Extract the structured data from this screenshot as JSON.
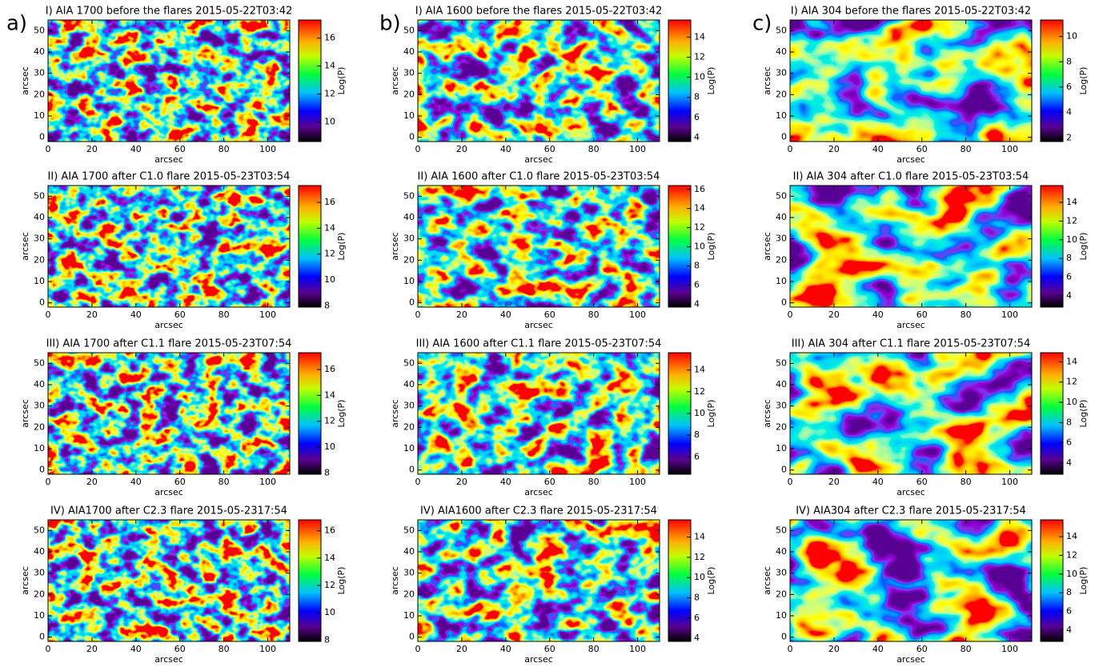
{
  "panel_labels": [
    "a)",
    "b)",
    "c)"
  ],
  "chart_data": [
    {
      "type": "heatmap",
      "title": "I) AIA 1700 before the flares 2015-05-22T03:42",
      "xlabel": "arcsec",
      "ylabel": "arcsec",
      "xlim": [
        0,
        110
      ],
      "xticks": [
        0,
        20,
        40,
        60,
        80,
        100
      ],
      "ylim": [
        -2,
        55
      ],
      "yticks": [
        0,
        10,
        20,
        30,
        40,
        50
      ],
      "colorbar_label": "Log(P)",
      "clim": [
        8.6,
        17.3
      ],
      "cticks": [
        10,
        12,
        14,
        16
      ]
    },
    {
      "type": "heatmap",
      "title": "I) AIA 1600 before the flares 2015-05-22T03:42",
      "xlabel": "arcsec",
      "ylabel": "arcsec",
      "xlim": [
        0,
        110
      ],
      "xticks": [
        0,
        20,
        40,
        60,
        80,
        100
      ],
      "ylim": [
        -2,
        55
      ],
      "yticks": [
        0,
        10,
        20,
        30,
        40,
        50
      ],
      "colorbar_label": "Log(P)",
      "clim": [
        3.6,
        15.7
      ],
      "cticks": [
        4,
        6,
        8,
        10,
        12,
        14
      ]
    },
    {
      "type": "heatmap",
      "title": "I) AIA 304 before the flares 2015-05-22T03:42",
      "xlabel": "arcsec",
      "ylabel": "arcsec",
      "xlim": [
        0,
        110
      ],
      "xticks": [
        0,
        20,
        40,
        60,
        80,
        100
      ],
      "ylim": [
        -2,
        55
      ],
      "yticks": [
        0,
        10,
        20,
        30,
        40,
        50
      ],
      "colorbar_label": "Log(P)",
      "clim": [
        1.7,
        11.3
      ],
      "cticks": [
        2,
        4,
        6,
        8,
        10
      ]
    },
    {
      "type": "heatmap",
      "title": "II) AIA 1700 after C1.0 flare 2015-05-23T03:54",
      "xlabel": "arcsec",
      "ylabel": "arcsec",
      "xlim": [
        0,
        110
      ],
      "xticks": [
        0,
        20,
        40,
        60,
        80,
        100
      ],
      "ylim": [
        -2,
        55
      ],
      "yticks": [
        0,
        10,
        20,
        30,
        40,
        50
      ],
      "colorbar_label": "Log(P)",
      "clim": [
        7.9,
        17.3
      ],
      "cticks": [
        8,
        10,
        12,
        14,
        16
      ]
    },
    {
      "type": "heatmap",
      "title": "II) AIA 1600 after C1.0 flare 2015-05-23T03:54",
      "xlabel": "arcsec",
      "ylabel": "arcsec",
      "xlim": [
        0,
        110
      ],
      "xticks": [
        0,
        20,
        40,
        60,
        80,
        100
      ],
      "ylim": [
        -2,
        55
      ],
      "yticks": [
        0,
        10,
        20,
        30,
        40,
        50
      ],
      "colorbar_label": "Log(P)",
      "clim": [
        3.7,
        16.4
      ],
      "cticks": [
        4,
        6,
        8,
        10,
        12,
        14,
        16
      ]
    },
    {
      "type": "heatmap",
      "title": "II) AIA 304 after C1.0 flare 2015-05-23T03:54",
      "xlabel": "arcsec",
      "ylabel": "arcsec",
      "xlim": [
        0,
        110
      ],
      "xticks": [
        0,
        20,
        40,
        60,
        80,
        100
      ],
      "ylim": [
        -2,
        55
      ],
      "yticks": [
        0,
        10,
        20,
        30,
        40,
        50
      ],
      "colorbar_label": "Log(P)",
      "clim": [
        2.8,
        15.8
      ],
      "cticks": [
        4,
        6,
        8,
        10,
        12,
        14
      ]
    },
    {
      "type": "heatmap",
      "title": "III) AIA 1700 after C1.1 flare 2015-05-23T07:54",
      "xlabel": "arcsec",
      "ylabel": "arcsec",
      "xlim": [
        0,
        110
      ],
      "xticks": [
        0,
        20,
        40,
        60,
        80,
        100
      ],
      "ylim": [
        -2,
        55
      ],
      "yticks": [
        0,
        10,
        20,
        30,
        40,
        50
      ],
      "colorbar_label": "Log(P)",
      "clim": [
        7.9,
        17.3
      ],
      "cticks": [
        8,
        10,
        12,
        14,
        16
      ]
    },
    {
      "type": "heatmap",
      "title": "III) AIA 1600 after C1.1 flare 2015-05-23T07:54",
      "xlabel": "arcsec",
      "ylabel": "arcsec",
      "xlim": [
        0,
        110
      ],
      "xticks": [
        0,
        20,
        40,
        60,
        80,
        100
      ],
      "ylim": [
        -2,
        55
      ],
      "yticks": [
        0,
        10,
        20,
        30,
        40,
        50
      ],
      "colorbar_label": "Log(P)",
      "clim": [
        4.4,
        15.6
      ],
      "cticks": [
        6,
        8,
        10,
        12,
        14
      ]
    },
    {
      "type": "heatmap",
      "title": "III) AIA 304 after C1.1 flare 2015-05-23T07:54",
      "xlabel": "arcsec",
      "ylabel": "arcsec",
      "xlim": [
        0,
        110
      ],
      "xticks": [
        0,
        20,
        40,
        60,
        80,
        100
      ],
      "ylim": [
        -2,
        55
      ],
      "yticks": [
        0,
        10,
        20,
        30,
        40,
        50
      ],
      "colorbar_label": "Log(P)",
      "clim": [
        2.9,
        14.9
      ],
      "cticks": [
        4,
        6,
        8,
        10,
        12,
        14
      ]
    },
    {
      "type": "heatmap",
      "title": "IV) AIA1700 after C2.3 flare 2015-05-2317:54",
      "xlabel": "arcsec",
      "ylabel": "arcsec",
      "xlim": [
        0,
        110
      ],
      "xticks": [
        0,
        20,
        40,
        60,
        80,
        100
      ],
      "ylim": [
        -2,
        55
      ],
      "yticks": [
        0,
        10,
        20,
        30,
        40,
        50
      ],
      "colorbar_label": "Log(P)",
      "clim": [
        7.9,
        16.8
      ],
      "cticks": [
        8,
        10,
        12,
        14,
        16
      ]
    },
    {
      "type": "heatmap",
      "title": "IV) AIA1600 after C2.3 flare 2015-05-2317:54",
      "xlabel": "arcsec",
      "ylabel": "arcsec",
      "xlim": [
        0,
        110
      ],
      "xticks": [
        0,
        20,
        40,
        60,
        80,
        100
      ],
      "ylim": [
        -2,
        55
      ],
      "yticks": [
        0,
        10,
        20,
        30,
        40,
        50
      ],
      "colorbar_label": "Log(P)",
      "clim": [
        3.7,
        15.7
      ],
      "cticks": [
        4,
        6,
        8,
        10,
        12,
        14
      ]
    },
    {
      "type": "heatmap",
      "title": "IV) AIA304 after C2.3 flare 2015-05-2317:54",
      "xlabel": "arcsec",
      "ylabel": "arcsec",
      "xlim": [
        0,
        110
      ],
      "xticks": [
        0,
        20,
        40,
        60,
        80,
        100
      ],
      "ylim": [
        -2,
        55
      ],
      "yticks": [
        0,
        10,
        20,
        30,
        40,
        50
      ],
      "colorbar_label": "Log(P)",
      "clim": [
        2.8,
        15.8
      ],
      "cticks": [
        4,
        6,
        8,
        10,
        12,
        14
      ]
    }
  ]
}
